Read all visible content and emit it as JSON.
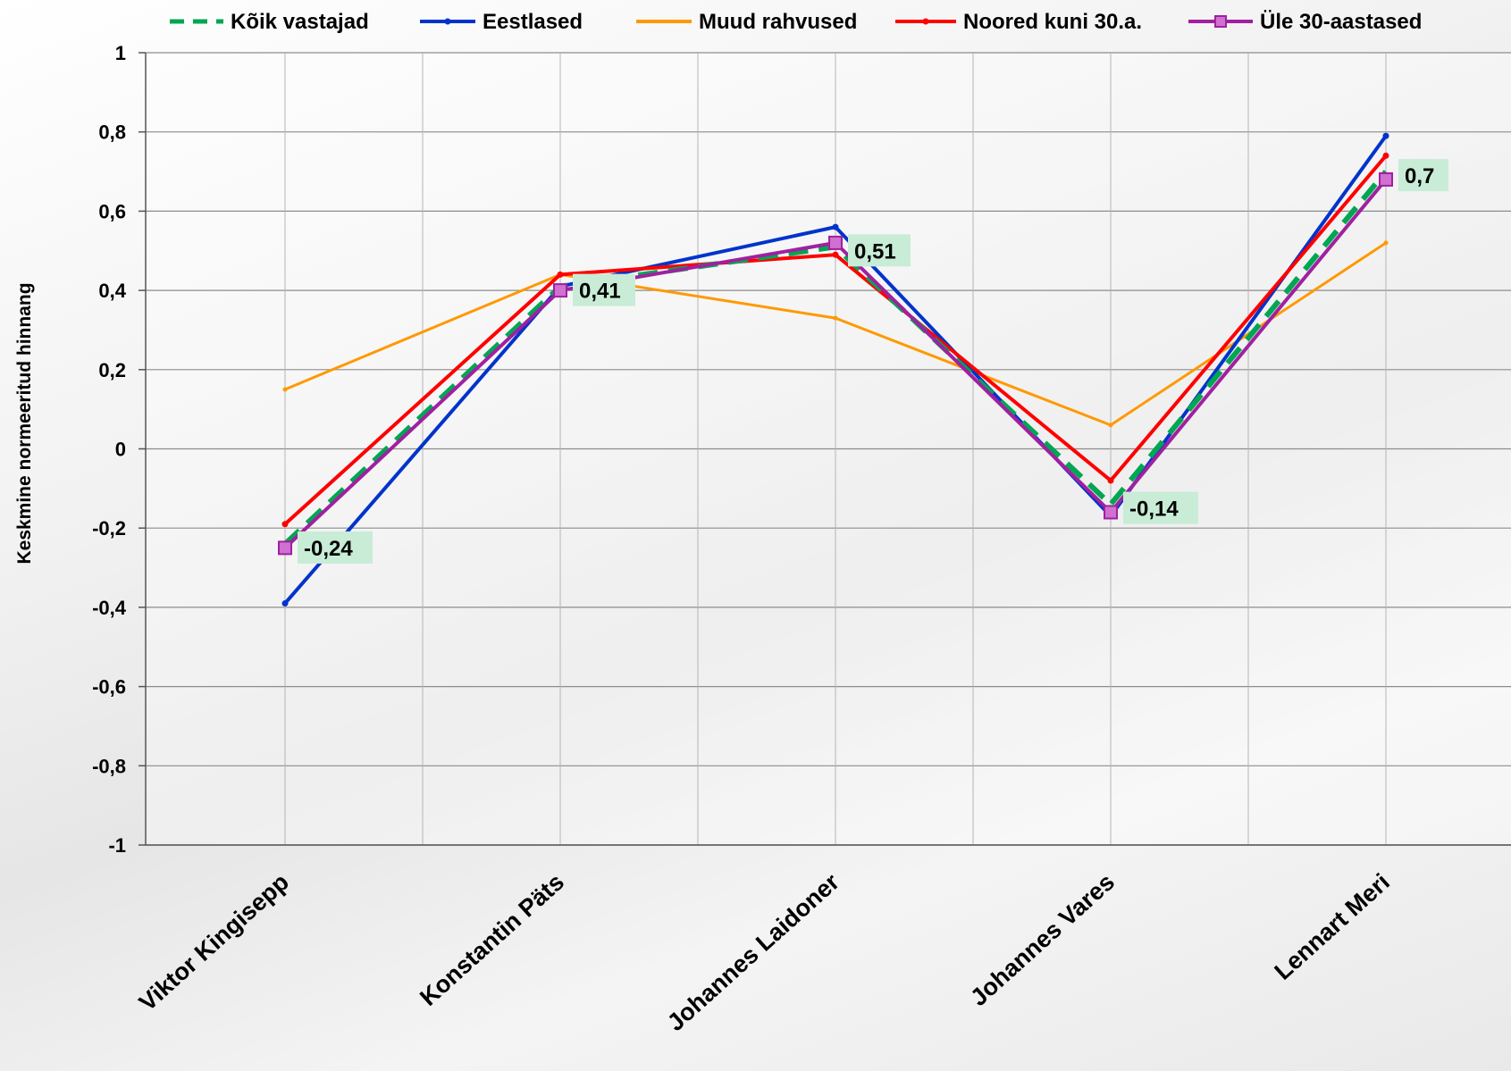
{
  "chart_data": {
    "type": "line",
    "title": "",
    "xlabel": "",
    "ylabel": "Keskmine normeeritud hinnang",
    "ylim": [
      -1,
      1
    ],
    "y_ticks": [
      "1",
      "0,8",
      "0,6",
      "0,4",
      "0,2",
      "0",
      "-0,2",
      "-0,4",
      "-0,6",
      "-0,8",
      "-1"
    ],
    "y_tick_values": [
      1,
      0.8,
      0.6,
      0.4,
      0.2,
      0,
      -0.2,
      -0.4,
      -0.6,
      -0.8,
      -1
    ],
    "categories": [
      "Viktor Kingisepp",
      "Konstantin Päts",
      "Johannes Laidoner",
      "Johannes Vares",
      "Lennart Meri"
    ],
    "grid": true,
    "legend_position": "top",
    "series": [
      {
        "name": "Kõik vastajad",
        "color": "#00a651",
        "dashed": true,
        "values": [
          -0.24,
          0.41,
          0.51,
          -0.14,
          0.7
        ]
      },
      {
        "name": "Eestlased",
        "color": "#0033cc",
        "dashed": false,
        "values": [
          -0.39,
          0.41,
          0.56,
          -0.17,
          0.79
        ]
      },
      {
        "name": "Muud rahvused",
        "color": "#ff9900",
        "dashed": false,
        "values": [
          0.15,
          0.44,
          0.33,
          0.06,
          0.52
        ]
      },
      {
        "name": "Noored kuni 30.a.",
        "color": "#ff0000",
        "dashed": false,
        "values": [
          -0.19,
          0.44,
          0.49,
          -0.08,
          0.74
        ]
      },
      {
        "name": "Üle 30-aastased",
        "color": "#a020a0",
        "dashed": false,
        "values": [
          -0.25,
          0.4,
          0.52,
          -0.16,
          0.68
        ]
      }
    ],
    "data_labels": [
      "-0,24",
      "0,41",
      "0,51",
      "-0,14",
      "0,7"
    ],
    "data_label_bg": "#c8ecd6"
  }
}
